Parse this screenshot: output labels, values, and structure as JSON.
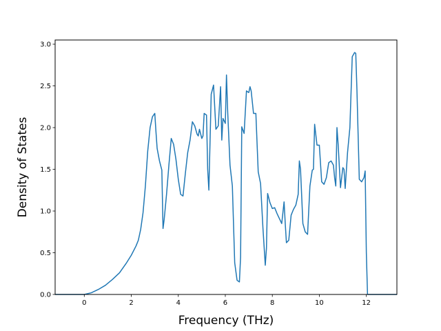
{
  "chart_data": {
    "type": "line",
    "title": "",
    "xlabel": "Frequency (THz)",
    "ylabel": "Density of States",
    "xlim": [
      -1.24,
      13.3
    ],
    "ylim": [
      0,
      3.05
    ],
    "x_ticks": [
      0,
      2,
      4,
      6,
      8,
      10,
      12
    ],
    "y_ticks": [
      0.0,
      0.5,
      1.0,
      1.5,
      2.0,
      2.5,
      3.0
    ],
    "x_tick_labels": [
      "0",
      "2",
      "4",
      "6",
      "8",
      "10",
      "12"
    ],
    "y_tick_labels": [
      "0.0",
      "0.5",
      "1.0",
      "1.5",
      "2.0",
      "2.5",
      "3.0"
    ],
    "grid": false,
    "legend": false,
    "series": [
      {
        "color": "#1f77b4",
        "x": [
          -1.24,
          0.0,
          0.3,
          0.6,
          0.9,
          1.2,
          1.5,
          1.8,
          2.0,
          2.2,
          2.3,
          2.4,
          2.5,
          2.6,
          2.7,
          2.8,
          2.9,
          3.0,
          3.05,
          3.1,
          3.2,
          3.3,
          3.35,
          3.4,
          3.5,
          3.6,
          3.7,
          3.8,
          3.9,
          4.0,
          4.1,
          4.2,
          4.3,
          4.4,
          4.5,
          4.6,
          4.7,
          4.8,
          4.85,
          4.9,
          5.0,
          5.05,
          5.1,
          5.2,
          5.25,
          5.3,
          5.4,
          5.5,
          5.6,
          5.7,
          5.8,
          5.85,
          5.9,
          6.0,
          6.05,
          6.1,
          6.2,
          6.3,
          6.4,
          6.5,
          6.6,
          6.65,
          6.7,
          6.8,
          6.9,
          7.0,
          7.05,
          7.1,
          7.2,
          7.3,
          7.4,
          7.5,
          7.6,
          7.7,
          7.75,
          7.8,
          7.9,
          8.0,
          8.1,
          8.2,
          8.3,
          8.4,
          8.5,
          8.55,
          8.6,
          8.7,
          8.8,
          8.9,
          9.0,
          9.1,
          9.15,
          9.2,
          9.3,
          9.4,
          9.5,
          9.6,
          9.7,
          9.75,
          9.8,
          9.9,
          10.0,
          10.1,
          10.2,
          10.3,
          10.4,
          10.5,
          10.6,
          10.65,
          10.7,
          10.75,
          10.8,
          10.9,
          11.0,
          11.05,
          11.1,
          11.2,
          11.3,
          11.4,
          11.5,
          11.55,
          11.6,
          11.7,
          11.8,
          11.9,
          11.95,
          12.0,
          12.05,
          13.3
        ],
        "y": [
          0.0,
          0.0,
          0.02,
          0.06,
          0.11,
          0.18,
          0.26,
          0.38,
          0.47,
          0.58,
          0.65,
          0.78,
          0.98,
          1.3,
          1.72,
          2.0,
          2.13,
          2.17,
          1.95,
          1.75,
          1.6,
          1.49,
          0.79,
          0.9,
          1.2,
          1.55,
          1.87,
          1.8,
          1.62,
          1.38,
          1.2,
          1.18,
          1.45,
          1.7,
          1.85,
          2.07,
          2.02,
          1.92,
          1.9,
          1.98,
          1.87,
          1.9,
          2.17,
          2.15,
          1.5,
          1.25,
          2.4,
          2.51,
          1.98,
          2.02,
          2.49,
          1.85,
          2.11,
          2.05,
          2.63,
          2.2,
          1.55,
          1.3,
          0.38,
          0.17,
          0.15,
          0.45,
          2.01,
          1.93,
          2.44,
          2.42,
          2.49,
          2.44,
          2.17,
          2.17,
          1.47,
          1.33,
          0.8,
          0.35,
          0.55,
          1.21,
          1.1,
          1.03,
          1.04,
          0.97,
          0.91,
          0.85,
          1.11,
          0.85,
          0.62,
          0.65,
          0.95,
          1.02,
          1.07,
          1.2,
          1.6,
          1.5,
          0.85,
          0.75,
          0.72,
          1.3,
          1.49,
          1.5,
          2.04,
          1.79,
          1.79,
          1.35,
          1.32,
          1.4,
          1.58,
          1.6,
          1.55,
          1.4,
          1.3,
          2.0,
          1.8,
          1.28,
          1.52,
          1.5,
          1.27,
          1.7,
          2.0,
          2.85,
          2.9,
          2.89,
          2.45,
          1.38,
          1.35,
          1.4,
          1.48,
          0.5,
          0.0,
          0.0
        ]
      }
    ]
  }
}
